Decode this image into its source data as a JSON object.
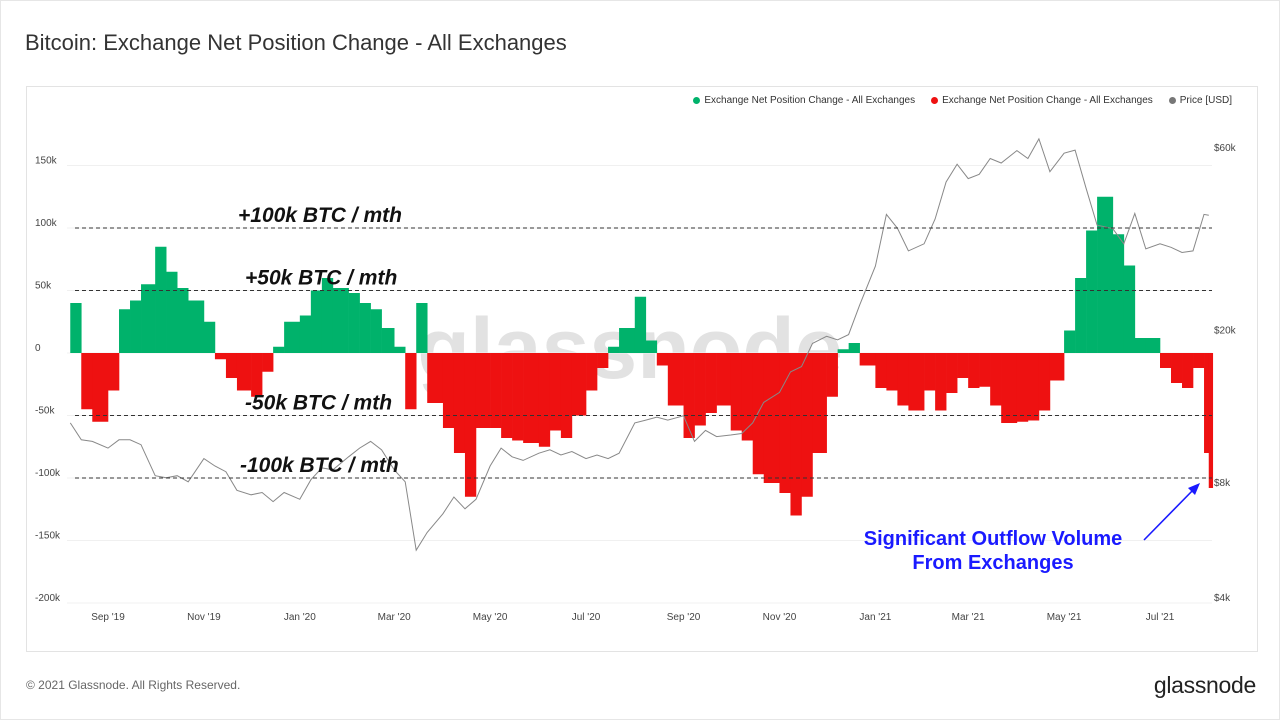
{
  "title": "Bitcoin: Exchange Net Position Change - All Exchanges",
  "footer": "© 2021 Glassnode. All Rights Reserved.",
  "logo": "glassnode",
  "watermark": "glassnode",
  "legend": [
    {
      "label": "Exchange Net Position Change - All Exchanges",
      "color": "#00b26b"
    },
    {
      "label": "Exchange Net Position Change - All Exchanges",
      "color": "#ee1111"
    },
    {
      "label": "Price [USD]",
      "color": "#777777"
    }
  ],
  "annotation": {
    "line1": "Significant Outflow Volume",
    "line2": "From Exchanges",
    "color": "#1a1aff"
  },
  "chart_data": {
    "type": "bar",
    "title": "Bitcoin: Exchange Net Position Change - All Exchanges",
    "y_left": {
      "ticks": [
        "150k",
        "100k",
        "50k",
        "0",
        "-50k",
        "-100k",
        "-150k",
        "-200k"
      ],
      "tick_values": [
        150000,
        100000,
        50000,
        0,
        -50000,
        -100000,
        -150000,
        -200000
      ],
      "range": [
        -200000,
        160000
      ]
    },
    "y_right": {
      "scale": "log",
      "ticks": [
        "$60k",
        "$20k",
        "$8k",
        "$4k"
      ],
      "tick_values": [
        60000,
        20000,
        8000,
        4000
      ]
    },
    "x_ticks": [
      {
        "label": "Sep '19",
        "date": "2019-09-01"
      },
      {
        "label": "Nov '19",
        "date": "2019-11-01"
      },
      {
        "label": "Jan '20",
        "date": "2020-01-01"
      },
      {
        "label": "Mar '20",
        "date": "2020-03-01"
      },
      {
        "label": "May '20",
        "date": "2020-05-01"
      },
      {
        "label": "Jul '20",
        "date": "2020-07-01"
      },
      {
        "label": "Sep '20",
        "date": "2020-09-01"
      },
      {
        "label": "Nov '20",
        "date": "2020-11-01"
      },
      {
        "label": "Jan '21",
        "date": "2021-01-01"
      },
      {
        "label": "Mar '21",
        "date": "2021-03-01"
      },
      {
        "label": "May '21",
        "date": "2021-05-01"
      },
      {
        "label": "Jul '21",
        "date": "2021-07-01"
      }
    ],
    "reference_lines": [
      {
        "value": 100000,
        "label": "+100k BTC / mth"
      },
      {
        "value": 50000,
        "label": "+50k BTC / mth"
      },
      {
        "value": -50000,
        "label": "-50k BTC / mth"
      },
      {
        "value": -100000,
        "label": "-100k BTC / mth"
      }
    ],
    "positive_color": "#00b26b",
    "negative_color": "#ee1111",
    "price_color": "#888888",
    "dates": [
      "2019-08-08",
      "2019-08-15",
      "2019-08-22",
      "2019-09-01",
      "2019-09-08",
      "2019-09-15",
      "2019-09-22",
      "2019-10-01",
      "2019-10-08",
      "2019-10-15",
      "2019-10-22",
      "2019-11-01",
      "2019-11-08",
      "2019-11-15",
      "2019-11-22",
      "2019-12-01",
      "2019-12-08",
      "2019-12-15",
      "2019-12-22",
      "2020-01-01",
      "2020-01-08",
      "2020-01-15",
      "2020-01-22",
      "2020-02-01",
      "2020-02-08",
      "2020-02-15",
      "2020-02-22",
      "2020-03-01",
      "2020-03-08",
      "2020-03-15",
      "2020-03-22",
      "2020-04-01",
      "2020-04-08",
      "2020-04-15",
      "2020-04-22",
      "2020-05-01",
      "2020-05-08",
      "2020-05-15",
      "2020-05-22",
      "2020-06-01",
      "2020-06-08",
      "2020-06-15",
      "2020-06-22",
      "2020-07-01",
      "2020-07-08",
      "2020-07-15",
      "2020-07-22",
      "2020-08-01",
      "2020-08-08",
      "2020-08-15",
      "2020-08-22",
      "2020-09-01",
      "2020-09-08",
      "2020-09-15",
      "2020-09-22",
      "2020-10-01",
      "2020-10-08",
      "2020-10-15",
      "2020-10-22",
      "2020-11-01",
      "2020-11-08",
      "2020-11-15",
      "2020-11-22",
      "2020-12-01",
      "2020-12-08",
      "2020-12-15",
      "2020-12-22",
      "2021-01-01",
      "2021-01-08",
      "2021-01-15",
      "2021-01-22",
      "2021-02-01",
      "2021-02-08",
      "2021-02-15",
      "2021-02-22",
      "2021-03-01",
      "2021-03-08",
      "2021-03-15",
      "2021-03-22",
      "2021-04-01",
      "2021-04-08",
      "2021-04-15",
      "2021-04-22",
      "2021-05-01",
      "2021-05-08",
      "2021-05-15",
      "2021-05-22",
      "2021-06-01",
      "2021-06-08",
      "2021-06-15",
      "2021-06-22",
      "2021-07-01",
      "2021-07-08",
      "2021-07-15",
      "2021-07-22",
      "2021-07-29",
      "2021-08-01"
    ],
    "series": [
      {
        "name": "Exchange Net Position Change - All Exchanges",
        "values": [
          40000,
          -45000,
          -55000,
          -30000,
          35000,
          42000,
          55000,
          85000,
          65000,
          52000,
          42000,
          25000,
          -5000,
          -20000,
          -30000,
          -35000,
          -15000,
          5000,
          25000,
          30000,
          50000,
          60000,
          52000,
          48000,
          40000,
          35000,
          20000,
          5000,
          -45000,
          40000,
          -40000,
          -60000,
          -80000,
          -115000,
          -60000,
          -60000,
          -68000,
          -70000,
          -72000,
          -75000,
          -62000,
          -68000,
          -50000,
          -30000,
          -12000,
          5000,
          20000,
          45000,
          10000,
          -10000,
          -42000,
          -68000,
          -58000,
          -48000,
          -42000,
          -62000,
          -70000,
          -97000,
          -104000,
          -112000,
          -130000,
          -115000,
          -80000,
          -35000,
          3000,
          8000,
          -10000,
          -28000,
          -30000,
          -42000,
          -46000,
          -30000,
          -46000,
          -32000,
          -20000,
          -28000,
          -27000,
          -42000,
          -56000,
          -55000,
          -54000,
          -46000,
          -22000,
          18000,
          60000,
          98000,
          125000,
          95000,
          70000,
          12000,
          12000,
          -12000,
          -24000,
          -28000,
          -12000,
          -80000,
          -108000
        ]
      },
      {
        "name": "Price [USD]",
        "values": [
          11400,
          10300,
          10200,
          9800,
          10300,
          10300,
          10000,
          8300,
          8200,
          8300,
          8000,
          9200,
          8800,
          8500,
          7600,
          7400,
          7500,
          7100,
          7500,
          7200,
          8100,
          8700,
          8600,
          9300,
          9800,
          10200,
          9700,
          8600,
          8000,
          5300,
          5900,
          6600,
          7300,
          6800,
          7200,
          8800,
          9800,
          9300,
          9100,
          9500,
          9700,
          9400,
          9600,
          9200,
          9400,
          9200,
          9500,
          11400,
          11600,
          11800,
          11600,
          11900,
          10200,
          10900,
          10500,
          10600,
          10700,
          11400,
          12900,
          13700,
          15500,
          16000,
          18400,
          19200,
          18800,
          19400,
          23200,
          29300,
          40000,
          36800,
          32100,
          33500,
          38900,
          48600,
          54100,
          49600,
          50900,
          56000,
          54500,
          58700,
          56000,
          63000,
          51700,
          57800,
          58900,
          46800,
          37500,
          36700,
          33500,
          40200,
          32500,
          33500,
          32800,
          31800,
          32100,
          40000,
          39800
        ]
      }
    ]
  }
}
